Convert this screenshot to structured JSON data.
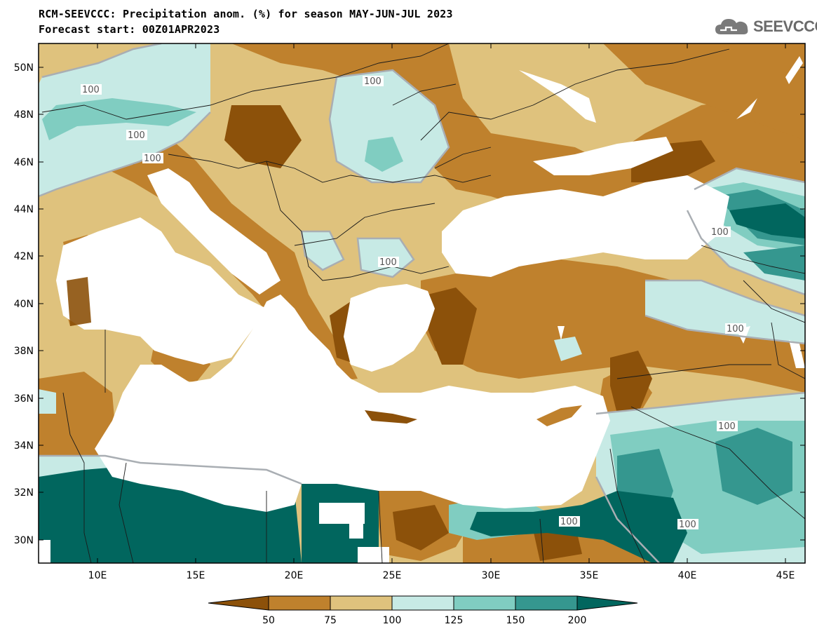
{
  "title": {
    "line1": "RCM-SEEVCCC: Precipitation anom. (%) for season MAY-JUN-JUL 2023",
    "line2": "Forecast start: 00Z01APR2023"
  },
  "logo": {
    "text": "SEEVCCC",
    "icon": "cloud-icon"
  },
  "map": {
    "lon_range": [
      7,
      46
    ],
    "lat_range": [
      29,
      51
    ],
    "lat_ticks": [
      "50N",
      "48N",
      "46N",
      "44N",
      "42N",
      "40N",
      "38N",
      "36N",
      "34N",
      "32N",
      "30N"
    ],
    "lon_ticks": [
      "10E",
      "15E",
      "20E",
      "25E",
      "30E",
      "35E",
      "40E",
      "45E"
    ],
    "contour_labels": [
      "100",
      "100",
      "100",
      "100",
      "100",
      "100",
      "100",
      "100",
      "100",
      "100"
    ]
  },
  "colorbar": {
    "labels": [
      "50",
      "75",
      "100",
      "125",
      "150",
      "200"
    ],
    "colors": [
      "#8c510a",
      "#bf812d",
      "#dfc27d",
      "#c7eae5",
      "#80cdc1",
      "#35978f",
      "#01665e"
    ]
  }
}
